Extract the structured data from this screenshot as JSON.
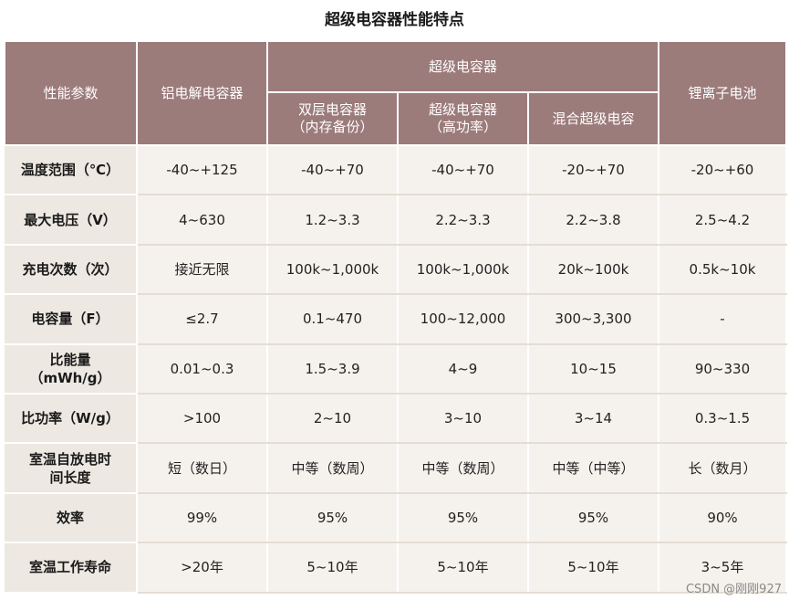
{
  "title": "超级电容器性能特点",
  "header": {
    "param": "性能参数",
    "aluminum": "铝电解电容器",
    "supercap_group": "超级电容器",
    "edlc": "双层电容器\n（内存备份）",
    "edlc_l1": "双层电容器",
    "edlc_l2": "（内存备份）",
    "power_l1": "超级电容器",
    "power_l2": "（高功率）",
    "hybrid": "混合超级电容",
    "liion": "锂离子电池"
  },
  "rows": [
    {
      "label": "温度范围（℃）",
      "values": [
        "-40~+125",
        "-40~+70",
        "-40~+70",
        "-20~+70",
        "-20~+60"
      ]
    },
    {
      "label": "最大电压（V）",
      "values": [
        "4~630",
        "1.2~3.3",
        "2.2~3.3",
        "2.2~3.8",
        "2.5~4.2"
      ]
    },
    {
      "label": "充电次数（次）",
      "values": [
        "接近无限",
        "100k~1,000k",
        "100k~1,000k",
        "20k~100k",
        "0.5k~10k"
      ]
    },
    {
      "label": "电容量（F）",
      "values": [
        "≤2.7",
        "0.1~470",
        "100~12,000",
        "300~3,300",
        "-"
      ]
    },
    {
      "label_l1": "比能量",
      "label_l2": "（mWh/g）",
      "values": [
        "0.01~0.3",
        "1.5~3.9",
        "4~9",
        "10~15",
        "90~330"
      ]
    },
    {
      "label": "比功率（W/g）",
      "values": [
        ">100",
        "2~10",
        "3~10",
        "3~14",
        "0.3~1.5"
      ]
    },
    {
      "label_l1": "室温自放电时",
      "label_l2": "间长度",
      "values": [
        "短（数日）",
        "中等（数周）",
        "中等（数周）",
        "中等（中等）",
        "长（数月）"
      ]
    },
    {
      "label": "效率",
      "values": [
        "99%",
        "95%",
        "95%",
        "95%",
        "90%"
      ]
    },
    {
      "label": "室温工作寿命",
      "values": [
        ">20年",
        "5~10年",
        "5~10年",
        "5~10年",
        "3~5年"
      ]
    }
  ],
  "watermark": "CSDN @刚刚927"
}
